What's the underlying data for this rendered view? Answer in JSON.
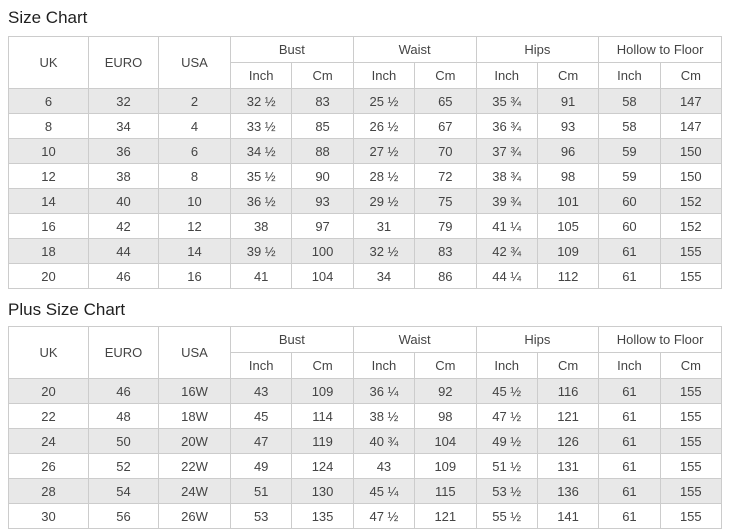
{
  "size_chart": {
    "title": "Size Chart",
    "rows": [
      [
        "6",
        "32",
        "2",
        "32 ½",
        "83",
        "25 ½",
        "65",
        "35 ¾",
        "91",
        "58",
        "147"
      ],
      [
        "8",
        "34",
        "4",
        "33 ½",
        "85",
        "26 ½",
        "67",
        "36 ¾",
        "93",
        "58",
        "147"
      ],
      [
        "10",
        "36",
        "6",
        "34 ½",
        "88",
        "27 ½",
        "70",
        "37 ¾",
        "96",
        "59",
        "150"
      ],
      [
        "12",
        "38",
        "8",
        "35 ½",
        "90",
        "28 ½",
        "72",
        "38 ¾",
        "98",
        "59",
        "150"
      ],
      [
        "14",
        "40",
        "10",
        "36 ½",
        "93",
        "29 ½",
        "75",
        "39 ¾",
        "101",
        "60",
        "152"
      ],
      [
        "16",
        "42",
        "12",
        "38",
        "97",
        "31",
        "79",
        "41 ¼",
        "105",
        "60",
        "152"
      ],
      [
        "18",
        "44",
        "14",
        "39 ½",
        "100",
        "32 ½",
        "83",
        "42 ¾",
        "109",
        "61",
        "155"
      ],
      [
        "20",
        "46",
        "16",
        "41",
        "104",
        "34",
        "86",
        "44 ¼",
        "112",
        "61",
        "155"
      ]
    ]
  },
  "plus_size_chart": {
    "title": "Plus Size Chart",
    "rows": [
      [
        "20",
        "46",
        "16W",
        "43",
        "109",
        "36 ¼",
        "92",
        "45 ½",
        "116",
        "61",
        "155"
      ],
      [
        "22",
        "48",
        "18W",
        "45",
        "114",
        "38 ½",
        "98",
        "47 ½",
        "121",
        "61",
        "155"
      ],
      [
        "24",
        "50",
        "20W",
        "47",
        "119",
        "40 ¾",
        "104",
        "49 ½",
        "126",
        "61",
        "155"
      ],
      [
        "26",
        "52",
        "22W",
        "49",
        "124",
        "43",
        "109",
        "51 ½",
        "131",
        "61",
        "155"
      ],
      [
        "28",
        "54",
        "24W",
        "51",
        "130",
        "45 ¼",
        "115",
        "53 ½",
        "136",
        "61",
        "155"
      ],
      [
        "30",
        "56",
        "26W",
        "53",
        "135",
        "47 ½",
        "121",
        "55 ½",
        "141",
        "61",
        "155"
      ]
    ]
  },
  "table_headers": {
    "uk": "UK",
    "euro": "EURO",
    "usa": "USA",
    "groups": [
      "Bust",
      "Waist",
      "Hips",
      "Hollow to Floor"
    ],
    "sub_inch": "Inch",
    "sub_cm": "Cm"
  },
  "colors": {
    "stripe_row": "#e8e8e8",
    "border": "#cccccc",
    "text": "#444444",
    "title_text": "#1f1f1f"
  }
}
